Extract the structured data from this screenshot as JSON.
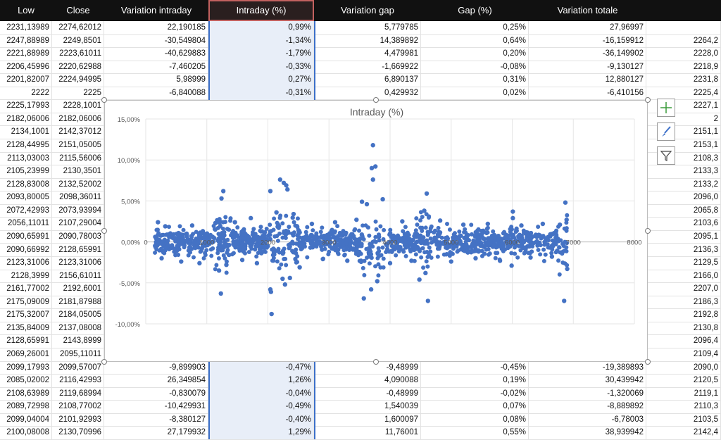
{
  "columns": [
    {
      "label": "Low",
      "selected": false
    },
    {
      "label": "Close",
      "selected": false
    },
    {
      "label": "Variation intraday",
      "selected": false
    },
    {
      "label": "Intraday (%)",
      "selected": true
    },
    {
      "label": "Variation gap",
      "selected": false
    },
    {
      "label": "Gap (%)",
      "selected": false
    },
    {
      "label": "Variation totale",
      "selected": false
    },
    {
      "label": "",
      "selected": false
    }
  ],
  "rows": [
    [
      "2231,13989",
      "2274,62012",
      "22,190185",
      "0,99%",
      "5,779785",
      "0,25%",
      "27,96997",
      ""
    ],
    [
      "2247,88989",
      "2249,8501",
      "-30,549804",
      "-1,34%",
      "14,389892",
      "0,64%",
      "-16,159912",
      "2264,2"
    ],
    [
      "2221,88989",
      "2223,61011",
      "-40,629883",
      "-1,79%",
      "4,479981",
      "0,20%",
      "-36,149902",
      "2228,0"
    ],
    [
      "2206,45996",
      "2220,62988",
      "-7,460205",
      "-0,33%",
      "-1,669922",
      "-0,08%",
      "-9,130127",
      "2218,9"
    ],
    [
      "2201,82007",
      "2224,94995",
      "5,98999",
      "0,27%",
      "6,890137",
      "0,31%",
      "12,880127",
      "2231,8"
    ],
    [
      "2222",
      "2225",
      "-6,840088",
      "-0,31%",
      "0,429932",
      "0,02%",
      "-6,410156",
      "2225,4"
    ],
    [
      "2225,17993",
      "2228,1001",
      "",
      "",
      "",
      "",
      "",
      "2227,1"
    ],
    [
      "2182,06006",
      "2182,06006",
      "",
      "",
      "",
      "",
      "",
      "2"
    ],
    [
      "2134,1001",
      "2142,37012",
      "",
      "",
      "",
      "",
      "",
      "2151,1"
    ],
    [
      "2128,44995",
      "2151,05005",
      "",
      "",
      "",
      "",
      "",
      "2153,1"
    ],
    [
      "2113,03003",
      "2115,56006",
      "",
      "",
      "",
      "",
      "",
      "2108,3"
    ],
    [
      "2105,23999",
      "2130,3501",
      "",
      "",
      "",
      "",
      "",
      "2133,3"
    ],
    [
      "2128,83008",
      "2132,52002",
      "",
      "",
      "",
      "",
      "",
      "2133,2"
    ],
    [
      "2093,80005",
      "2098,36011",
      "",
      "",
      "",
      "",
      "",
      "2096,0"
    ],
    [
      "2072,42993",
      "2073,93994",
      "",
      "",
      "",
      "",
      "",
      "2065,8"
    ],
    [
      "2056,11011",
      "2107,29004",
      "",
      "",
      "",
      "",
      "",
      "2103,6"
    ],
    [
      "2090,65991",
      "2090,78003",
      "",
      "",
      "",
      "",
      "",
      "2095,1"
    ],
    [
      "2090,66992",
      "2128,65991",
      "",
      "",
      "",
      "",
      "",
      "2136,3"
    ],
    [
      "2123,31006",
      "2123,31006",
      "",
      "",
      "",
      "",
      "",
      "2129,5"
    ],
    [
      "2128,3999",
      "2156,61011",
      "",
      "",
      "",
      "",
      "",
      "2166,0"
    ],
    [
      "2161,77002",
      "2192,6001",
      "",
      "",
      "",
      "",
      "",
      "2207,0"
    ],
    [
      "2175,09009",
      "2181,87988",
      "",
      "",
      "",
      "",
      "",
      "2186,3"
    ],
    [
      "2175,32007",
      "2184,05005",
      "",
      "",
      "",
      "",
      "",
      "2192,8"
    ],
    [
      "2135,84009",
      "2137,08008",
      "",
      "",
      "",
      "",
      "",
      "2130,8"
    ],
    [
      "2128,65991",
      "2143,8999",
      "",
      "",
      "",
      "",
      "",
      "2096,4"
    ],
    [
      "2069,26001",
      "2095,11011",
      "",
      "",
      "",
      "",
      "",
      "2109,4"
    ],
    [
      "2099,17993",
      "2099,57007",
      "-9,899903",
      "-0,47%",
      "-9,48999",
      "-0,45%",
      "-19,389893",
      "2090,0"
    ],
    [
      "2085,02002",
      "2116,42993",
      "26,349854",
      "1,26%",
      "4,090088",
      "0,19%",
      "30,439942",
      "2120,5"
    ],
    [
      "2108,63989",
      "2119,68994",
      "-0,830079",
      "-0,04%",
      "-0,48999",
      "-0,02%",
      "-1,320069",
      "2119,1"
    ],
    [
      "2089,72998",
      "2108,77002",
      "-10,429931",
      "-0,49%",
      "1,540039",
      "0,07%",
      "-8,889892",
      "2110,3"
    ],
    [
      "2099,04004",
      "2101,92993",
      "-8,380127",
      "-0,40%",
      "1,600097",
      "0,08%",
      "-6,78003",
      "2103,5"
    ],
    [
      "2100,08008",
      "2130,70996",
      "27,179932",
      "1,29%",
      "11,76001",
      "0,55%",
      "38,939942",
      "2142,4"
    ]
  ],
  "chart_data": {
    "type": "scatter",
    "title": "Intraday (%)",
    "xlim": [
      0,
      8000
    ],
    "ylim": [
      -10,
      15
    ],
    "x_ticks": [
      "0",
      "1000",
      "2000",
      "3000",
      "4000",
      "5000",
      "6000",
      "7000",
      "8000"
    ],
    "y_ticks": [
      "15,00%",
      "10,00%",
      "5,00%",
      "0,00%",
      "-5,00%",
      "-10,00%"
    ],
    "grid": true,
    "series": [
      {
        "color": "#4472C4",
        "points": [
          [
            1240,
            5.3
          ],
          [
            1270,
            6.2
          ],
          [
            1200,
            -3.5
          ],
          [
            1230,
            -6.3
          ],
          [
            2040,
            6.2
          ],
          [
            2040,
            -5.8
          ],
          [
            2050,
            -6.1
          ],
          [
            2060,
            -8.8
          ],
          [
            2200,
            7.6
          ],
          [
            2260,
            7.2
          ],
          [
            2300,
            6.9
          ],
          [
            2320,
            6.4
          ],
          [
            2240,
            -4.5
          ],
          [
            2280,
            -5.2
          ],
          [
            2360,
            -4.4
          ],
          [
            3720,
            11.8
          ],
          [
            3700,
            9.0
          ],
          [
            3760,
            9.2
          ],
          [
            3720,
            7.6
          ],
          [
            3540,
            4.9
          ],
          [
            3620,
            4.6
          ],
          [
            3880,
            5.2
          ],
          [
            3570,
            -6.9
          ],
          [
            3690,
            -5.8
          ],
          [
            3790,
            -4.8
          ],
          [
            4600,
            5.9
          ],
          [
            4560,
            3.8
          ],
          [
            4580,
            -3.8
          ],
          [
            4620,
            -7.2
          ],
          [
            4480,
            -4.6
          ],
          [
            6010,
            3.7
          ],
          [
            6010,
            2.9
          ],
          [
            5990,
            -2.9
          ],
          [
            6870,
            4.8
          ],
          [
            6890,
            2.7
          ],
          [
            6850,
            -7.2
          ],
          [
            6900,
            -3.3
          ],
          [
            200,
            2.4
          ],
          [
            260,
            -2.0
          ],
          [
            320,
            1.9
          ],
          [
            580,
            -2.4
          ],
          [
            760,
            2.0
          ],
          [
            880,
            -2.6
          ],
          [
            1140,
            2.3
          ],
          [
            1320,
            -2.8
          ],
          [
            1460,
            2.4
          ],
          [
            1580,
            -2.2
          ],
          [
            1720,
            2.9
          ],
          [
            1820,
            -2.6
          ],
          [
            2140,
            3.6
          ],
          [
            2420,
            3.4
          ],
          [
            2520,
            -3.1
          ],
          [
            2720,
            2.2
          ],
          [
            2900,
            -2.1
          ],
          [
            3100,
            2.4
          ],
          [
            3300,
            -2.3
          ],
          [
            3450,
            2.7
          ],
          [
            4000,
            -2.6
          ],
          [
            4200,
            2.5
          ],
          [
            4350,
            -2.3
          ],
          [
            4820,
            2.6
          ],
          [
            5000,
            -2.4
          ],
          [
            5200,
            2.1
          ],
          [
            5400,
            -2.0
          ],
          [
            5600,
            2.2
          ],
          [
            5800,
            -2.3
          ],
          [
            6150,
            2.0
          ],
          [
            6300,
            -1.9
          ],
          [
            6500,
            2.2
          ],
          [
            6650,
            -1.8
          ],
          [
            6780,
            2.1
          ]
        ]
      }
    ]
  },
  "side_buttons": [
    {
      "icon": "plus-icon"
    },
    {
      "icon": "brush-icon"
    },
    {
      "icon": "filter-icon"
    }
  ]
}
